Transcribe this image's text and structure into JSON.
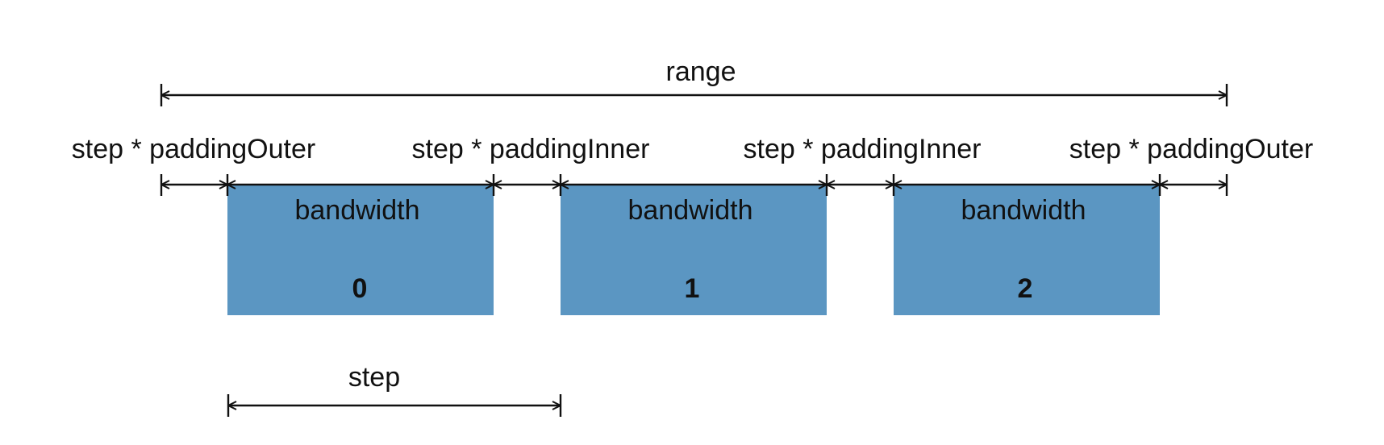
{
  "labels": {
    "range": "range",
    "outer_left": "step * paddingOuter",
    "inner_1": "step * paddingInner",
    "inner_2": "step * paddingInner",
    "outer_right": "step * paddingOuter",
    "step": "step"
  },
  "bands": [
    {
      "label": "bandwidth",
      "index": "0"
    },
    {
      "label": "bandwidth",
      "index": "1"
    },
    {
      "label": "bandwidth",
      "index": "2"
    }
  ],
  "colors": {
    "band_fill": "#5b96c2",
    "line": "#111111",
    "text": "#111111"
  }
}
